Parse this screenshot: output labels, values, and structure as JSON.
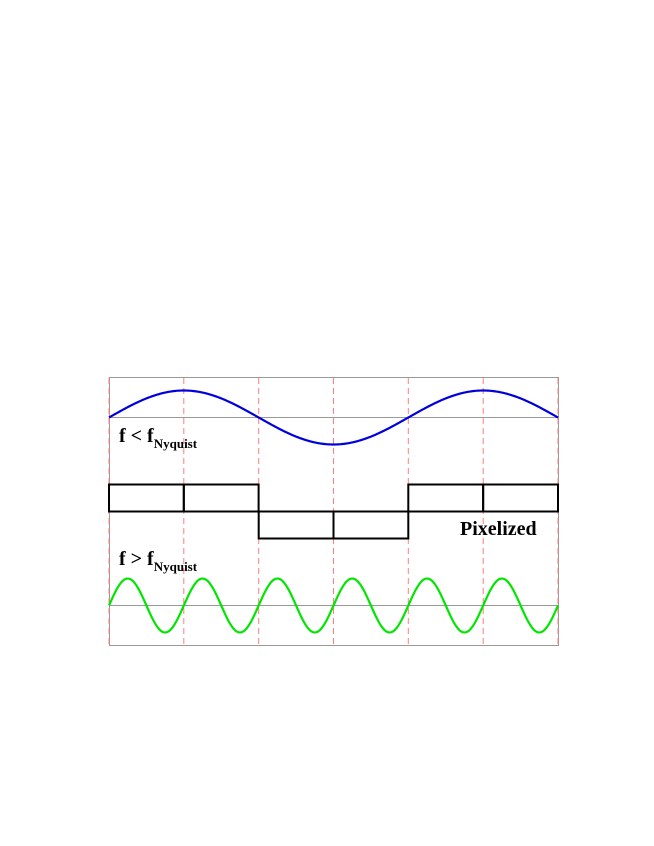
{
  "labels": {
    "low_freq": {
      "prefix": "f < f",
      "subscript": "Nyquist"
    },
    "high_freq": {
      "prefix": "f > f",
      "subscript": "Nyquist"
    },
    "pixelized": "Pixelized"
  },
  "colors": {
    "low_freq_wave": "#0000dd",
    "high_freq_wave": "#00e600",
    "pixels": "#000000",
    "sample_lines": "#ff7f7f",
    "frame": "#999999",
    "baselines": "#999999"
  },
  "signal": {
    "pixel_values": [
      1,
      1,
      -1,
      -1,
      1,
      1
    ],
    "low_freq_cycles": 1.5,
    "high_freq_cycles": 6
  }
}
